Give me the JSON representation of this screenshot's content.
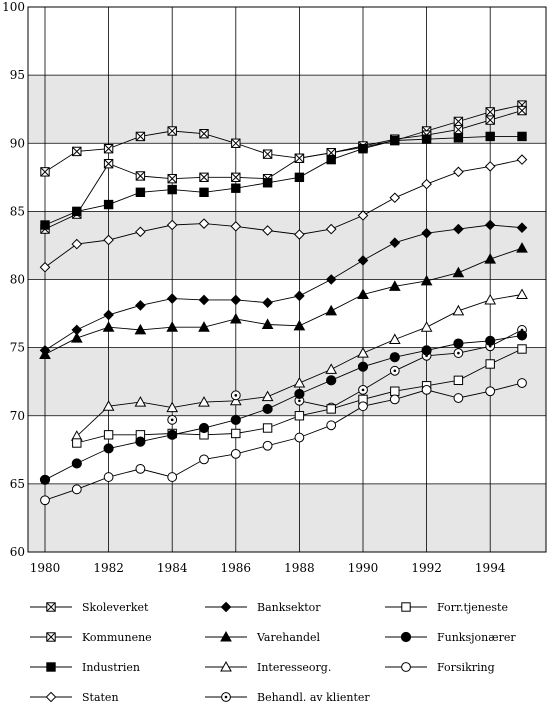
{
  "chart_data": {
    "type": "line",
    "title": "",
    "xlabel": "",
    "ylabel": "",
    "xlim": [
      1980,
      1995
    ],
    "ylim": [
      60,
      100
    ],
    "x_ticks": [
      "1980",
      "1982",
      "1984",
      "1986",
      "1988",
      "1990",
      "1992",
      "1994"
    ],
    "y_ticks": [
      "60",
      "65",
      "70",
      "75",
      "80",
      "85",
      "90",
      "95",
      "100"
    ],
    "x": [
      1980,
      1981,
      1982,
      1983,
      1984,
      1985,
      1986,
      1987,
      1988,
      1989,
      1990,
      1991,
      1992,
      1993,
      1994,
      1995
    ],
    "grid": "horizontal-bands",
    "legend": "bottom",
    "series": [
      {
        "name": "Skoleverket",
        "marker": "boxed-x",
        "values": [
          87.9,
          89.4,
          89.6,
          90.5,
          90.9,
          90.7,
          90.0,
          89.2,
          88.9,
          89.3,
          89.7,
          90.2,
          90.9,
          91.6,
          92.3,
          92.8
        ]
      },
      {
        "name": "Kommunene",
        "marker": "boxed-x",
        "values": [
          83.7,
          84.8,
          88.5,
          87.6,
          87.4,
          87.5,
          87.5,
          87.4,
          88.9,
          89.3,
          89.8,
          90.3,
          90.6,
          91.0,
          91.7,
          92.4
        ]
      },
      {
        "name": "Industrien",
        "marker": "filled-square",
        "values": [
          84.0,
          85.0,
          85.5,
          86.4,
          86.6,
          86.4,
          86.7,
          87.1,
          87.5,
          88.8,
          89.6,
          90.2,
          90.3,
          90.4,
          90.5,
          90.5
        ]
      },
      {
        "name": "Staten",
        "marker": "open-diamond",
        "values": [
          80.9,
          82.6,
          82.9,
          83.5,
          84.0,
          84.1,
          83.9,
          83.6,
          83.3,
          83.7,
          84.7,
          86.0,
          87.0,
          87.9,
          88.3,
          88.8
        ]
      },
      {
        "name": "Banksektor",
        "marker": "filled-diamond",
        "values": [
          74.8,
          76.3,
          77.4,
          78.1,
          78.6,
          78.5,
          78.5,
          78.3,
          78.8,
          80.0,
          81.4,
          82.7,
          83.4,
          83.7,
          84.0,
          83.8
        ]
      },
      {
        "name": "Varehandel",
        "marker": "filled-triangle",
        "values": [
          74.5,
          75.7,
          76.5,
          76.3,
          76.5,
          76.5,
          77.1,
          76.7,
          76.6,
          77.7,
          78.9,
          79.5,
          79.9,
          80.5,
          81.5,
          82.3
        ]
      },
      {
        "name": "Interesseorg.",
        "marker": "open-triangle",
        "values": [
          null,
          68.5,
          70.7,
          71.0,
          70.6,
          71.0,
          71.1,
          71.4,
          72.4,
          73.4,
          74.6,
          75.6,
          76.5,
          77.7,
          78.5,
          78.9
        ]
      },
      {
        "name": "Behandl. av klienter",
        "marker": "open-circle-dot",
        "values": [
          null,
          null,
          null,
          null,
          69.7,
          null,
          71.5,
          null,
          71.1,
          70.6,
          71.9,
          73.3,
          74.4,
          74.6,
          75.1,
          76.3
        ]
      },
      {
        "name": "Forr.tjeneste",
        "marker": "open-square",
        "values": [
          null,
          68.0,
          68.6,
          68.6,
          68.7,
          68.6,
          68.7,
          69.1,
          70.0,
          70.5,
          71.2,
          71.8,
          72.2,
          72.6,
          73.8,
          74.9
        ]
      },
      {
        "name": "Funksjonærer",
        "marker": "filled-circle",
        "values": [
          65.3,
          66.5,
          67.6,
          68.1,
          68.6,
          69.1,
          69.7,
          70.5,
          71.6,
          72.6,
          73.6,
          74.3,
          74.8,
          75.3,
          75.5,
          75.9
        ]
      },
      {
        "name": "Forsikring",
        "marker": "open-circle",
        "values": [
          63.8,
          64.6,
          65.5,
          66.1,
          65.5,
          66.8,
          67.2,
          67.8,
          68.4,
          69.3,
          70.7,
          71.2,
          71.9,
          71.3,
          71.8,
          72.4
        ]
      }
    ],
    "legend_order": [
      [
        "Skoleverket",
        "Banksektor",
        "Forr.tjeneste"
      ],
      [
        "Kommunene",
        "Varehandel",
        "Funksjonærer"
      ],
      [
        "Industrien",
        "Interesseorg.",
        "Forsikring"
      ],
      [
        "Staten",
        "Behandl. av klienter"
      ]
    ]
  }
}
